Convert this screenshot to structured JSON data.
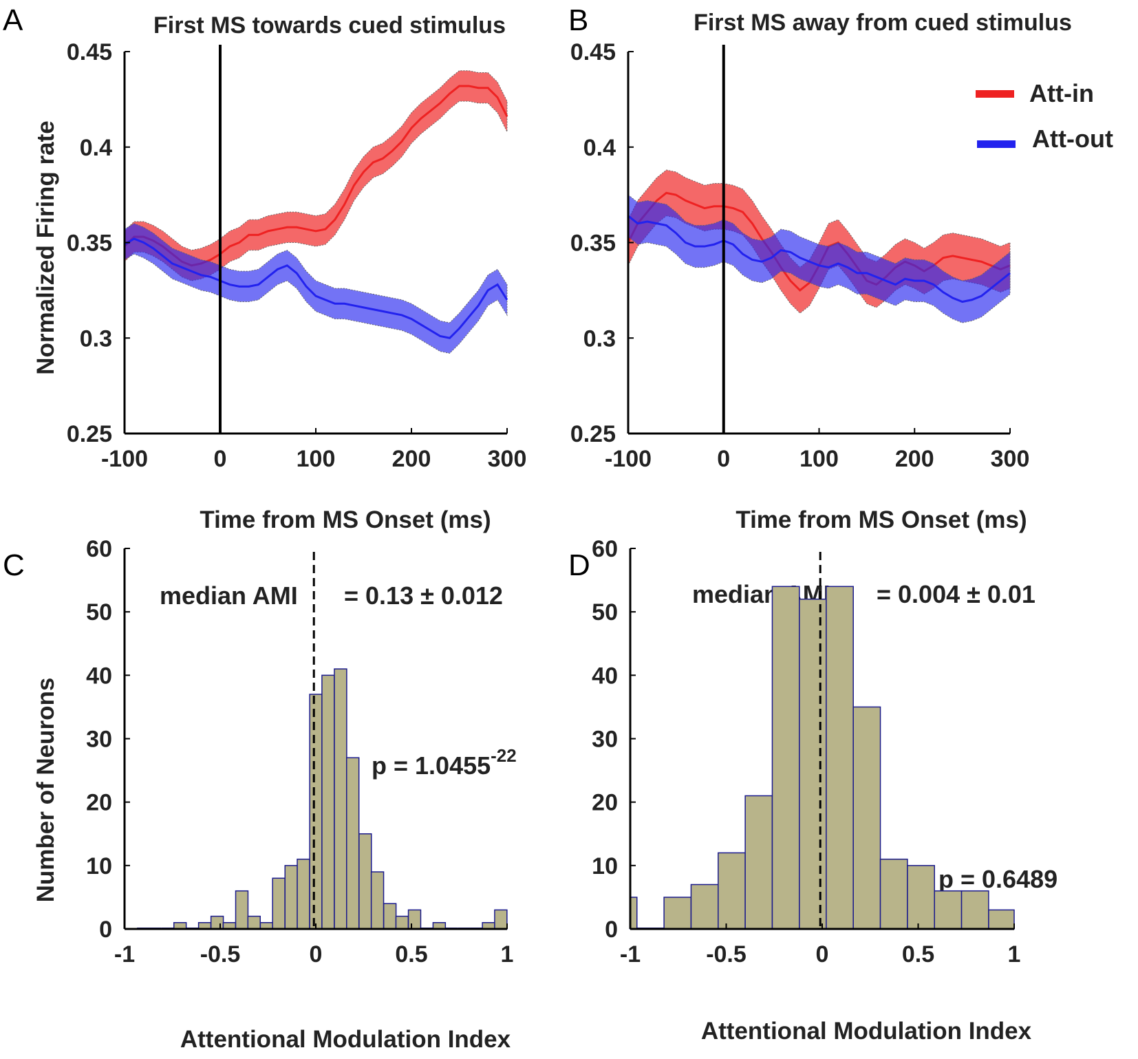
{
  "colors": {
    "att_in": "#ee2222",
    "att_out": "#2222ee",
    "att_in_band": "rgba(240,40,40,0.70)",
    "att_out_band": "rgba(40,40,240,0.65)",
    "hist_fill": "#b8b48a",
    "hist_edge": "#1a1a8c"
  },
  "chart_data": [
    {
      "panel": "A",
      "type": "line",
      "title": "First MS towards cued stimulus",
      "xlabel": "Time from MS Onset (ms)",
      "ylabel": "Normalized Firing rate",
      "xlim": [
        -100,
        300
      ],
      "ylim": [
        0.25,
        0.45
      ],
      "xticks": [
        "-100",
        "0",
        "100",
        "200",
        "300"
      ],
      "yticks": [
        "0.45",
        "0.4",
        "0.35",
        "0.3",
        "0.25"
      ],
      "vline_x": 0,
      "series": [
        {
          "name": "Att-in",
          "x": [
            -100,
            -90,
            -80,
            -70,
            -60,
            -50,
            -40,
            -30,
            -20,
            -10,
            0,
            10,
            20,
            30,
            40,
            50,
            60,
            70,
            80,
            90,
            100,
            110,
            120,
            130,
            140,
            150,
            160,
            170,
            180,
            190,
            200,
            210,
            220,
            230,
            240,
            250,
            260,
            270,
            280,
            290,
            300
          ],
          "mean": [
            0.348,
            0.353,
            0.353,
            0.351,
            0.348,
            0.344,
            0.34,
            0.338,
            0.339,
            0.341,
            0.344,
            0.348,
            0.35,
            0.354,
            0.354,
            0.356,
            0.357,
            0.358,
            0.358,
            0.357,
            0.356,
            0.357,
            0.362,
            0.37,
            0.38,
            0.387,
            0.392,
            0.394,
            0.398,
            0.403,
            0.41,
            0.415,
            0.419,
            0.423,
            0.428,
            0.432,
            0.432,
            0.431,
            0.431,
            0.426,
            0.416
          ],
          "half_width": 0.008
        },
        {
          "name": "Att-out",
          "x": [
            -100,
            -90,
            -80,
            -70,
            -60,
            -50,
            -40,
            -30,
            -20,
            -10,
            0,
            10,
            20,
            30,
            40,
            50,
            60,
            70,
            80,
            90,
            100,
            110,
            120,
            130,
            140,
            150,
            160,
            170,
            180,
            190,
            200,
            210,
            220,
            230,
            240,
            250,
            260,
            270,
            280,
            290,
            300
          ],
          "mean": [
            0.349,
            0.352,
            0.35,
            0.347,
            0.343,
            0.339,
            0.337,
            0.335,
            0.333,
            0.332,
            0.33,
            0.328,
            0.327,
            0.327,
            0.328,
            0.332,
            0.336,
            0.338,
            0.334,
            0.327,
            0.322,
            0.32,
            0.318,
            0.318,
            0.317,
            0.316,
            0.315,
            0.314,
            0.313,
            0.312,
            0.31,
            0.307,
            0.304,
            0.301,
            0.3,
            0.305,
            0.311,
            0.317,
            0.325,
            0.328,
            0.32
          ],
          "half_width": 0.008
        }
      ]
    },
    {
      "panel": "B",
      "type": "line",
      "title": "First MS away from cued stimulus",
      "xlabel": "Time from MS Onset (ms)",
      "ylabel": "",
      "xlim": [
        -100,
        300
      ],
      "ylim": [
        0.25,
        0.45
      ],
      "xticks": [
        "-100",
        "0",
        "100",
        "200",
        "300"
      ],
      "yticks": [
        "0.45",
        "0.4",
        "0.35",
        "0.3",
        "0.25"
      ],
      "vline_x": 0,
      "legend": {
        "position": "top-right",
        "entries": [
          "Att-in",
          "Att-out"
        ]
      },
      "series": [
        {
          "name": "Att-in",
          "x": [
            -100,
            -90,
            -80,
            -70,
            -60,
            -50,
            -40,
            -30,
            -20,
            -10,
            0,
            10,
            20,
            30,
            40,
            50,
            60,
            70,
            80,
            90,
            100,
            110,
            120,
            130,
            140,
            150,
            160,
            170,
            180,
            190,
            200,
            210,
            220,
            230,
            240,
            250,
            260,
            270,
            280,
            290,
            300
          ],
          "mean": [
            0.35,
            0.36,
            0.366,
            0.372,
            0.376,
            0.375,
            0.372,
            0.37,
            0.368,
            0.369,
            0.369,
            0.368,
            0.366,
            0.36,
            0.352,
            0.345,
            0.337,
            0.33,
            0.325,
            0.329,
            0.338,
            0.348,
            0.35,
            0.344,
            0.337,
            0.33,
            0.328,
            0.332,
            0.337,
            0.34,
            0.338,
            0.335,
            0.338,
            0.342,
            0.343,
            0.342,
            0.341,
            0.34,
            0.338,
            0.336,
            0.338
          ],
          "half_width": 0.012
        },
        {
          "name": "Att-out",
          "x": [
            -100,
            -90,
            -80,
            -70,
            -60,
            -50,
            -40,
            -30,
            -20,
            -10,
            0,
            10,
            20,
            30,
            40,
            50,
            60,
            70,
            80,
            90,
            100,
            110,
            120,
            130,
            140,
            150,
            160,
            170,
            180,
            190,
            200,
            210,
            220,
            230,
            240,
            250,
            260,
            270,
            280,
            290,
            300
          ],
          "mean": [
            0.364,
            0.36,
            0.361,
            0.36,
            0.359,
            0.355,
            0.35,
            0.348,
            0.348,
            0.349,
            0.351,
            0.349,
            0.344,
            0.341,
            0.34,
            0.342,
            0.346,
            0.345,
            0.342,
            0.34,
            0.338,
            0.337,
            0.339,
            0.337,
            0.334,
            0.334,
            0.332,
            0.33,
            0.328,
            0.331,
            0.33,
            0.33,
            0.328,
            0.324,
            0.321,
            0.319,
            0.32,
            0.322,
            0.326,
            0.33,
            0.334
          ],
          "half_width": 0.011
        }
      ]
    },
    {
      "panel": "C",
      "type": "bar",
      "subtype": "histogram",
      "title": "",
      "xlabel": "Attentional Modulation Index",
      "ylabel": "Number of Neurons",
      "xlim": [
        -1,
        1
      ],
      "ylim": [
        0,
        60
      ],
      "xticks": [
        "-1",
        "-0.5",
        "0",
        "0.5",
        "1"
      ],
      "yticks": [
        "60",
        "50",
        "40",
        "30",
        "20",
        "10",
        "0"
      ],
      "bin_width": 0.0645,
      "bin_left_edges": [
        -0.935,
        -0.871,
        -0.806,
        -0.742,
        -0.677,
        -0.613,
        -0.548,
        -0.484,
        -0.419,
        -0.355,
        -0.29,
        -0.226,
        -0.161,
        -0.097,
        -0.032,
        0.032,
        0.097,
        0.161,
        0.226,
        0.29,
        0.355,
        0.419,
        0.484,
        0.548,
        0.613,
        0.677,
        0.742,
        0.806,
        0.871,
        0.935
      ],
      "counts": [
        0,
        0,
        0,
        1,
        0,
        1,
        2,
        1,
        6,
        2,
        1,
        8,
        10,
        11,
        37,
        40,
        41,
        27,
        15,
        9,
        4,
        2,
        3,
        0,
        1,
        0,
        0,
        0,
        1,
        3
      ],
      "median_line_x": -0.01,
      "annotations": {
        "median_left": "median AMI",
        "median_right": "= 0.13 ± 0.012",
        "p_base": "p = 1.0455",
        "p_exp": "-22"
      }
    },
    {
      "panel": "D",
      "type": "bar",
      "subtype": "histogram",
      "title": "",
      "xlabel": "Attentional Modulation Index",
      "ylabel": "",
      "xlim": [
        -1,
        1
      ],
      "ylim": [
        0,
        60
      ],
      "xticks": [
        "-1",
        "-0.5",
        "0",
        "0.5",
        "1"
      ],
      "yticks": [
        "60",
        "50",
        "40",
        "30",
        "20",
        "10",
        "0"
      ],
      "bin_width": 0.141,
      "bin_left_edges": [
        -1.0,
        -0.965,
        -0.824,
        -0.683,
        -0.542,
        -0.401,
        -0.26,
        -0.119,
        0.021,
        0.162,
        0.303,
        0.444,
        0.585,
        0.726,
        0.867
      ],
      "bin_widths": [
        0.035,
        0.141,
        0.141,
        0.141,
        0.141,
        0.141,
        0.141,
        0.141,
        0.141,
        0.141,
        0.141,
        0.141,
        0.141,
        0.141,
        0.133
      ],
      "counts": [
        5,
        0,
        5,
        7,
        12,
        21,
        54,
        52,
        54,
        35,
        11,
        10,
        6,
        6,
        3
      ],
      "median_line_x": -0.01,
      "annotations": {
        "median_left": "median AMI",
        "median_right": "= 0.004 ± 0.01",
        "p_text": "p = 0.6489"
      }
    }
  ]
}
